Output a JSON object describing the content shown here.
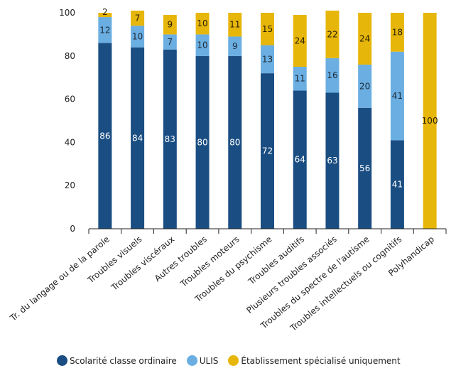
{
  "chart_data": {
    "type": "bar",
    "stacked": true,
    "categories": [
      "Tr. du langage ou de la parole",
      "Troubles visuels",
      "Troubles viscéraux",
      "Autres troubles",
      "Troubles moteurs",
      "Troubles du psychisme",
      "Troubles auditifs",
      "Plusieurs troubles associés",
      "Troubles du spectre de l'autisme",
      "Troubles intellectuels ou cognitifs",
      "Polyhandicap"
    ],
    "series": [
      {
        "name": "Scolarité classe ordinaire",
        "color": "#1a4e82",
        "label_color": "#ffffff",
        "values": [
          86,
          84,
          83,
          80,
          80,
          72,
          64,
          63,
          56,
          41,
          0
        ],
        "labels": [
          "86",
          "84",
          "83",
          "80",
          "80",
          "72",
          "64",
          "63",
          "56",
          "41",
          ""
        ]
      },
      {
        "name": "ULIS",
        "color": "#6aaee2",
        "label_color": "#1f2a36",
        "values": [
          12,
          10,
          7,
          10,
          9,
          13,
          11,
          16,
          20,
          41,
          0
        ],
        "labels": [
          "12",
          "10",
          "7",
          "10",
          "9",
          "13",
          "11",
          "16",
          "20",
          "41",
          ""
        ]
      },
      {
        "name": "Établissement spécialisé uniquement",
        "color": "#e7b60b",
        "label_color": "#2a2200",
        "values": [
          2,
          7,
          9,
          10,
          11,
          15,
          24,
          22,
          24,
          18,
          100
        ],
        "labels": [
          "2",
          "7",
          "9",
          "10",
          "11",
          "15",
          "24",
          "22",
          "24",
          "18",
          "100"
        ]
      }
    ],
    "ylim": [
      0,
      100
    ],
    "yticks": [
      "0",
      "20",
      "40",
      "60",
      "80",
      "100"
    ],
    "xlabel": "",
    "ylabel": "",
    "legend_position": "bottom"
  }
}
